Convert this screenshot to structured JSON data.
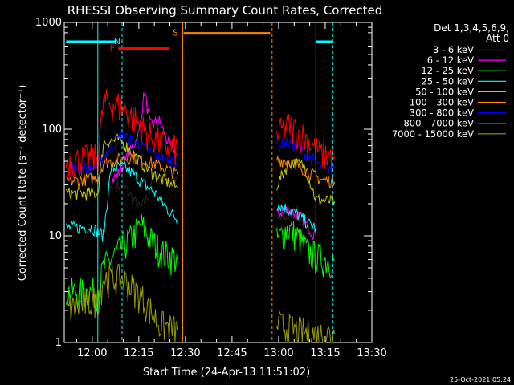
{
  "title": "RHESSI Observing Summary Count Rates, Corrected",
  "footer_date": "25-Oct-2021 05:24",
  "legend_header": [
    "Det 1,3,4,5,6,9,",
    "Att 0"
  ],
  "chart_data": {
    "type": "line",
    "title": "RHESSI Observing Summary Count Rates, Corrected",
    "xlabel": "Start Time (24-Apr-13 11:51:02)",
    "ylabel": "Corrected Count Rate (s⁻¹ detector⁻¹)",
    "y_scale": "log",
    "ylim": [
      1,
      1000
    ],
    "xlim": [
      "11:51",
      "13:30"
    ],
    "x_ticks": [
      "12:00",
      "12:15",
      "12:30",
      "12:45",
      "13:00",
      "13:15",
      "13:30"
    ],
    "y_ticks": [
      "1",
      "10",
      "100",
      "1000"
    ],
    "legend_position": "top-right",
    "series": [
      {
        "name": "3 - 6 keV",
        "color": "#000000",
        "segments": [
          [
            [
              12.13,
              30
            ],
            [
              12.18,
              28
            ],
            [
              12.22,
              22
            ],
            [
              12.26,
              18
            ],
            [
              12.3,
              24
            ],
            [
              12.34,
              40
            ],
            [
              12.38,
              33
            ],
            [
              12.42,
              35
            ],
            [
              12.46,
              32
            ]
          ],
          [
            [
              12.99,
              14
            ],
            [
              13.05,
              15
            ],
            [
              13.1,
              17
            ],
            [
              13.14,
              13
            ],
            [
              13.18,
              11
            ]
          ]
        ]
      },
      {
        "name": "6 - 12 keV",
        "color": "#ff00ff",
        "segments": [
          [
            [
              12.1,
              32
            ],
            [
              12.15,
              40
            ],
            [
              12.2,
              60
            ],
            [
              12.25,
              90
            ],
            [
              12.28,
              230
            ],
            [
              12.31,
              110
            ],
            [
              12.36,
              120
            ],
            [
              12.4,
              80
            ],
            [
              12.46,
              55
            ]
          ],
          [
            [
              12.99,
              16
            ],
            [
              13.05,
              18
            ],
            [
              13.1,
              16
            ],
            [
              13.16,
              12
            ],
            [
              13.2,
              10
            ]
          ]
        ]
      },
      {
        "name": "12 - 25 keV",
        "color": "#00ff00",
        "segments": [
          [
            [
              11.86,
              3
            ],
            [
              12.03,
              3
            ],
            [
              12.06,
              5
            ],
            [
              12.1,
              6
            ],
            [
              12.16,
              8
            ],
            [
              12.22,
              10
            ],
            [
              12.26,
              13
            ],
            [
              12.32,
              9
            ],
            [
              12.38,
              7
            ],
            [
              12.46,
              6
            ]
          ],
          [
            [
              12.99,
              9
            ],
            [
              13.05,
              12
            ],
            [
              13.1,
              10
            ],
            [
              13.16,
              7
            ],
            [
              13.25,
              6
            ],
            [
              13.3,
              6
            ]
          ]
        ]
      },
      {
        "name": "25 - 50 keV",
        "color": "#00ffff",
        "segments": [
          [
            [
              11.86,
              12
            ],
            [
              12.0,
              12
            ],
            [
              12.06,
              10
            ],
            [
              12.1,
              42
            ],
            [
              12.16,
              45
            ],
            [
              12.22,
              38
            ],
            [
              12.28,
              30
            ],
            [
              12.34,
              25
            ],
            [
              12.4,
              18
            ],
            [
              12.46,
              14
            ]
          ],
          [
            [
              12.99,
              20
            ],
            [
              13.04,
              18
            ],
            [
              13.1,
              16
            ],
            [
              13.16,
              13
            ],
            [
              13.2,
              12
            ]
          ]
        ]
      },
      {
        "name": "50 - 100 keV",
        "color": "#cccc00",
        "segments": [
          [
            [
              11.86,
              25
            ],
            [
              12.03,
              25
            ],
            [
              12.06,
              75
            ],
            [
              12.14,
              80
            ],
            [
              12.2,
              65
            ],
            [
              12.28,
              45
            ],
            [
              12.36,
              35
            ],
            [
              12.46,
              28
            ]
          ],
          [
            [
              12.99,
              30
            ],
            [
              13.06,
              50
            ],
            [
              13.14,
              45
            ],
            [
              13.2,
              22
            ],
            [
              13.3,
              21
            ]
          ]
        ]
      },
      {
        "name": "100 - 300 keV",
        "color": "#ff8800",
        "segments": [
          [
            [
              11.86,
              32
            ],
            [
              12.03,
              35
            ],
            [
              12.06,
              48
            ],
            [
              12.14,
              52
            ],
            [
              12.22,
              55
            ],
            [
              12.3,
              50
            ],
            [
              12.4,
              42
            ],
            [
              12.46,
              38
            ]
          ],
          [
            [
              12.99,
              52
            ],
            [
              13.06,
              50
            ],
            [
              13.16,
              40
            ],
            [
              13.22,
              34
            ],
            [
              13.3,
              32
            ]
          ]
        ]
      },
      {
        "name": "300 - 800 keV",
        "color": "#0000ff",
        "segments": [
          [
            [
              11.86,
              42
            ],
            [
              12.03,
              45
            ],
            [
              12.06,
              55
            ],
            [
              12.16,
              90
            ],
            [
              12.26,
              70
            ],
            [
              12.36,
              55
            ],
            [
              12.46,
              50
            ]
          ],
          [
            [
              12.99,
              70
            ],
            [
              13.06,
              75
            ],
            [
              13.14,
              60
            ],
            [
              13.22,
              45
            ],
            [
              13.3,
              43
            ]
          ]
        ]
      },
      {
        "name": "800 - 7000 keV",
        "color": "#ff0000",
        "segments": [
          [
            [
              11.86,
              50
            ],
            [
              12.03,
              55
            ],
            [
              12.06,
              180
            ],
            [
              12.14,
              170
            ],
            [
              12.22,
              130
            ],
            [
              12.3,
              90
            ],
            [
              12.4,
              70
            ],
            [
              12.46,
              65
            ]
          ],
          [
            [
              12.99,
              90
            ],
            [
              13.06,
              110
            ],
            [
              13.14,
              85
            ],
            [
              13.22,
              60
            ],
            [
              13.3,
              55
            ]
          ]
        ]
      },
      {
        "name": "7000 - 15000 keV",
        "color": "#999900",
        "segments": [
          [
            [
              11.86,
              2
            ],
            [
              12.03,
              2.6
            ],
            [
              12.06,
              4
            ],
            [
              12.16,
              4
            ],
            [
              12.26,
              2.8
            ],
            [
              12.36,
              1.5
            ],
            [
              12.46,
              1.3
            ]
          ],
          [
            [
              12.99,
              1.5
            ],
            [
              13.1,
              1.3
            ],
            [
              13.2,
              1.2
            ],
            [
              13.3,
              1.2
            ]
          ]
        ]
      }
    ],
    "annotations": [
      {
        "label": "N",
        "color": "#00ffff",
        "x": 12.16,
        "lines": [
          12.16,
          13.29
        ],
        "bars": [
          [
            11.86,
            12.13
          ],
          [
            13.2,
            13.29
          ]
        ],
        "bar_y": 660
      },
      {
        "label": "F",
        "color": "#ff0000",
        "x": 12.13,
        "bars": [
          [
            12.14,
            12.41
          ]
        ],
        "bar_y": 570
      },
      {
        "label": "S",
        "color": "#ff8800",
        "x": 12.47,
        "lines": [
          12.485,
          12.965
        ],
        "bars": [
          [
            12.49,
            12.955
          ]
        ],
        "bar_y": 790
      }
    ],
    "solid_lines": [
      {
        "color": "#00ffff",
        "x": [
          12.03,
          13.2
        ]
      },
      {
        "color": "#ff8800",
        "x": [
          12.485
        ]
      }
    ]
  }
}
